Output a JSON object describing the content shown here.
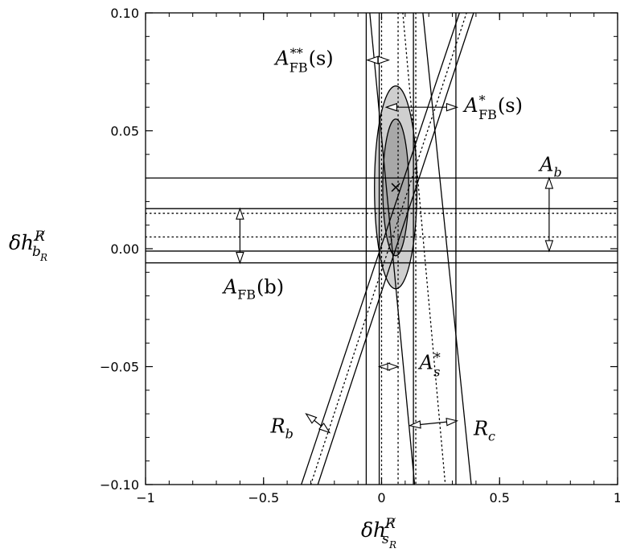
{
  "chart_data": {
    "type": "line",
    "title": "",
    "xlabel_main": "δh",
    "xlabel_sup": "R̸",
    "xlabel_sub": "s",
    "xlabel_subsub": "R",
    "ylabel_main": "δh",
    "ylabel_sup": "R̸",
    "ylabel_sub": "b",
    "ylabel_subsub": "R",
    "xlim": [
      -1,
      1
    ],
    "ylim": [
      -0.1,
      0.1
    ],
    "xticks": [
      -1,
      -0.5,
      0,
      0.5,
      1
    ],
    "xtick_labels": [
      "−1",
      "−0.5",
      "0",
      "0.5",
      "1"
    ],
    "yticks": [
      -0.1,
      -0.05,
      0,
      0.05,
      0.1
    ],
    "ytick_labels": [
      "−0.10",
      "−0.05",
      "0.00",
      "0.05",
      "0.10"
    ],
    "best_fit": {
      "x": 0.06,
      "y": 0.026,
      "marker": "×"
    },
    "ellipses": [
      {
        "name": "outer",
        "cx": 0.06,
        "cy": 0.026,
        "rx": 0.09,
        "ry": 0.043,
        "fill": "#cfcfcf"
      },
      {
        "name": "inner",
        "cx": 0.06,
        "cy": 0.026,
        "rx": 0.055,
        "ry": 0.029,
        "fill": "#a8a8a8"
      }
    ],
    "horizontal_lines": [
      {
        "y": 0.03,
        "style": "solid"
      },
      {
        "y": 0.017,
        "style": "solid"
      },
      {
        "y": 0.015,
        "style": "dotted"
      },
      {
        "y": 0.005,
        "style": "dotted"
      },
      {
        "y": -0.001,
        "style": "solid"
      },
      {
        "y": -0.006,
        "style": "solid"
      }
    ],
    "vertical_lines": [
      {
        "x": -0.065,
        "style": "solid"
      },
      {
        "x": -0.01,
        "style": "solid"
      },
      {
        "x": 0.0,
        "style": "dotted"
      },
      {
        "x": 0.07,
        "style": "dotted"
      },
      {
        "x": 0.135,
        "style": "solid"
      },
      {
        "x": 0.145,
        "style": "dotted"
      },
      {
        "x": 0.315,
        "style": "solid"
      }
    ],
    "slanted_lines": [
      {
        "group": "R_b",
        "p1": [
          -0.34,
          -0.1
        ],
        "p2": [
          0.33,
          0.1
        ],
        "style": "solid"
      },
      {
        "group": "R_b",
        "p1": [
          -0.3,
          -0.1
        ],
        "p2": [
          0.36,
          0.1
        ],
        "style": "dotted"
      },
      {
        "group": "R_b",
        "p1": [
          -0.27,
          -0.1
        ],
        "p2": [
          0.39,
          0.1
        ],
        "style": "solid"
      },
      {
        "group": "R_c",
        "p1": [
          -0.05,
          0.1
        ],
        "p2": [
          0.14,
          -0.1
        ],
        "style": "solid"
      },
      {
        "group": "R_c",
        "p1": [
          0.09,
          0.1
        ],
        "p2": [
          0.27,
          -0.1
        ],
        "style": "dotted"
      },
      {
        "group": "R_c",
        "p1": [
          0.175,
          0.1
        ],
        "p2": [
          0.38,
          -0.1
        ],
        "style": "solid"
      }
    ],
    "annotations": [
      {
        "label": "A",
        "sub": "FB",
        "sup": "**",
        "arg": "(s)",
        "text_at": [
          -0.45,
          0.078
        ],
        "arrow": [
          [
            0.03,
            0.08
          ],
          [
            -0.06,
            0.08
          ]
        ]
      },
      {
        "label": "A",
        "sub": "FB",
        "sup": "*",
        "arg": "(s)",
        "text_at": [
          0.35,
          0.058
        ],
        "arrow": [
          [
            0.02,
            0.06
          ],
          [
            0.32,
            0.06
          ]
        ]
      },
      {
        "label": "A",
        "sub": "b",
        "sup": "",
        "arg": "",
        "text_at": [
          0.67,
          0.033
        ],
        "arrow": [
          [
            0.71,
            0.03
          ],
          [
            0.71,
            -0.001
          ]
        ]
      },
      {
        "label": "A",
        "sub": "FB",
        "sup": "",
        "arg": "(b)",
        "text_at": [
          -0.67,
          -0.019
        ],
        "arrow": [
          [
            -0.6,
            0.017
          ],
          [
            -0.6,
            -0.006
          ]
        ]
      },
      {
        "label": "A",
        "sub": "s",
        "sup": "*",
        "arg": "",
        "text_at": [
          0.16,
          -0.051
        ],
        "arrow": [
          [
            0.07,
            -0.05
          ],
          [
            -0.01,
            -0.05
          ]
        ]
      },
      {
        "label": "R",
        "sub": "b",
        "sup": "",
        "arg": "",
        "text_at": [
          -0.47,
          -0.078
        ],
        "arrow": [
          [
            -0.32,
            -0.07
          ],
          [
            -0.22,
            -0.078
          ]
        ]
      },
      {
        "label": "R",
        "sub": "c",
        "sup": "",
        "arg": "",
        "text_at": [
          0.39,
          -0.079
        ],
        "arrow": [
          [
            0.12,
            -0.075
          ],
          [
            0.32,
            -0.073
          ]
        ]
      }
    ]
  }
}
